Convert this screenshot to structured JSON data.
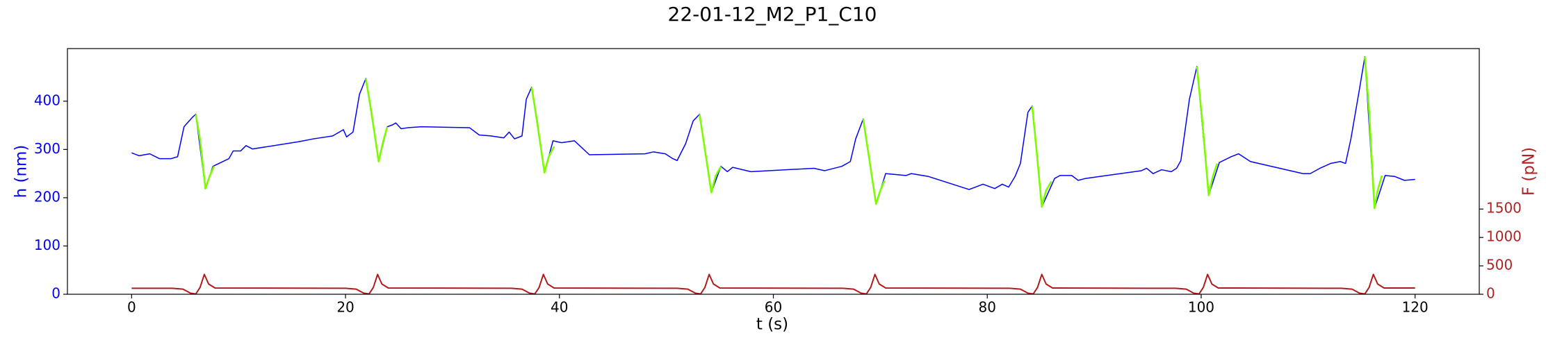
{
  "chart_data": {
    "type": "line",
    "title": "22-01-12_M2_P1_C10",
    "xlabel": "t (s)",
    "ylabel": "h (nm)",
    "y2label": "F (pN)",
    "ylabel_color": "#0000ff",
    "y2label_color": "#b22222",
    "xlim": [
      -6,
      126
    ],
    "xticks": [
      0,
      20,
      40,
      60,
      80,
      100,
      120
    ],
    "ylim": [
      0,
      509
    ],
    "yticks": [
      0,
      100,
      200,
      300,
      400
    ],
    "y2lim": [
      0,
      4325
    ],
    "y2ticks": [
      0,
      500,
      1000,
      1500
    ],
    "grid": false,
    "series": [
      {
        "color": "#0000ff",
        "axis": "y",
        "x": [
          0,
          0.7,
          1.7,
          2.6,
          3.7,
          4.3,
          4.9,
          5.7,
          6.0,
          6.9,
          7.6,
          9.1,
          9.5,
          10.2,
          10.7,
          11.3,
          15.6,
          17,
          18.8,
          19.8,
          20.1,
          20.7,
          21.3,
          21.9,
          23.1,
          23.9,
          24.4,
          24.7,
          25.2,
          25.8,
          27.1,
          31.6,
          32.5,
          33.6,
          34.8,
          35.3,
          35.8,
          36.5,
          36.9,
          37.4,
          38.6,
          39.4,
          40.2,
          41.4,
          42.8,
          48,
          48.8,
          49.9,
          50.6,
          51,
          51.8,
          52.5,
          53.1,
          54.2,
          55.1,
          55.7,
          56.2,
          57.9,
          63.8,
          64.8,
          66.4,
          67.2,
          67.7,
          68.4,
          69.6,
          70.5,
          72.4,
          72.9,
          74.5,
          78.3,
          79.6,
          80.7,
          81.4,
          82,
          82.6,
          83.1,
          83.8,
          84.2,
          85.1,
          86.3,
          86.8,
          87.9,
          88.5,
          89.2,
          94.4,
          94.9,
          95.5,
          96.3,
          97.2,
          97.7,
          98.1,
          98.9,
          99.6,
          100.7,
          101.7,
          102.8,
          103.5,
          104.6,
          109.5,
          110.2,
          111.1,
          112.1,
          113,
          113.5,
          114,
          114.8,
          115.3,
          116.2,
          117.2,
          118.1,
          119,
          120
        ],
        "values": [
          293,
          287,
          291,
          281,
          281,
          285,
          347,
          367,
          373,
          219,
          265,
          281,
          297,
          297,
          308,
          301,
          316,
          322,
          328,
          341,
          326,
          336,
          414,
          447,
          275,
          347,
          351,
          355,
          343,
          345,
          347,
          345,
          330,
          328,
          324,
          336,
          322,
          328,
          404,
          429,
          252,
          318,
          314,
          318,
          289,
          291,
          295,
          291,
          281,
          277,
          312,
          359,
          373,
          211,
          265,
          254,
          263,
          254,
          261,
          256,
          265,
          275,
          322,
          363,
          187,
          250,
          246,
          250,
          244,
          217,
          228,
          219,
          228,
          222,
          244,
          271,
          377,
          390,
          181,
          240,
          246,
          246,
          236,
          240,
          256,
          261,
          250,
          258,
          254,
          261,
          277,
          404,
          472,
          205,
          273,
          285,
          291,
          275,
          250,
          250,
          261,
          271,
          275,
          271,
          322,
          425,
          492,
          178,
          246,
          244,
          236,
          238
        ]
      },
      {
        "color": "#7cfc00",
        "axis": "y",
        "x": [
          6.0,
          6.4,
          6.9,
          7.3,
          7.7,
          14,
          21.9,
          22.4,
          23.1,
          23.5,
          23.9,
          30,
          37.4,
          37.9,
          38.6,
          39.0,
          39.5,
          45,
          53.1,
          53.6,
          54.2,
          54.6,
          55.1,
          60,
          68.4,
          68.9,
          69.6,
          70.0,
          70.4,
          77,
          84.2,
          84.6,
          85.1,
          85.5,
          86.0,
          92,
          99.6,
          100.1,
          100.7,
          101.1,
          101.5,
          108,
          115.3,
          115.7,
          116.2,
          116.5,
          116.9
        ],
        "values": [
          373,
          320,
          219,
          245,
          265,
          null,
          447,
          380,
          275,
          315,
          347,
          null,
          429,
          360,
          252,
          285,
          306,
          null,
          373,
          300,
          211,
          245,
          265,
          null,
          363,
          290,
          187,
          215,
          236,
          null,
          390,
          300,
          181,
          215,
          234,
          null,
          472,
          360,
          205,
          245,
          271,
          null,
          492,
          380,
          178,
          215,
          246
        ]
      },
      {
        "color": "#b21a1a",
        "axis": "y2",
        "x": [
          0,
          3.8,
          4.8,
          5.5,
          6.0,
          6.4,
          6.8,
          7.2,
          7.8,
          20.0,
          21.0,
          21.7,
          22.2,
          22.6,
          23.0,
          23.4,
          24.0,
          35.5,
          36.5,
          37.2,
          37.7,
          38.1,
          38.5,
          38.9,
          39.5,
          51,
          52,
          52.7,
          53.2,
          53.6,
          54,
          54.4,
          55,
          66.5,
          67.5,
          68.2,
          68.7,
          69.1,
          69.5,
          69.9,
          70.5,
          82.1,
          83.1,
          83.8,
          84.3,
          84.7,
          85.1,
          85.5,
          86.1,
          97.6,
          98.6,
          99.3,
          99.8,
          100.2,
          100.6,
          101.0,
          101.6,
          113.1,
          114.1,
          114.8,
          115.3,
          115.7,
          116.1,
          116.5,
          117.1,
          120
        ],
        "values": [
          105,
          105,
          90,
          20,
          5,
          120,
          350,
          180,
          110,
          105,
          90,
          20,
          5,
          120,
          350,
          180,
          110,
          105,
          90,
          20,
          5,
          120,
          350,
          180,
          110,
          105,
          90,
          20,
          5,
          120,
          350,
          180,
          110,
          105,
          90,
          20,
          5,
          120,
          350,
          180,
          110,
          105,
          90,
          20,
          5,
          120,
          350,
          180,
          110,
          105,
          90,
          20,
          5,
          120,
          350,
          180,
          110,
          105,
          90,
          20,
          5,
          120,
          350,
          180,
          110,
          110
        ]
      }
    ]
  }
}
